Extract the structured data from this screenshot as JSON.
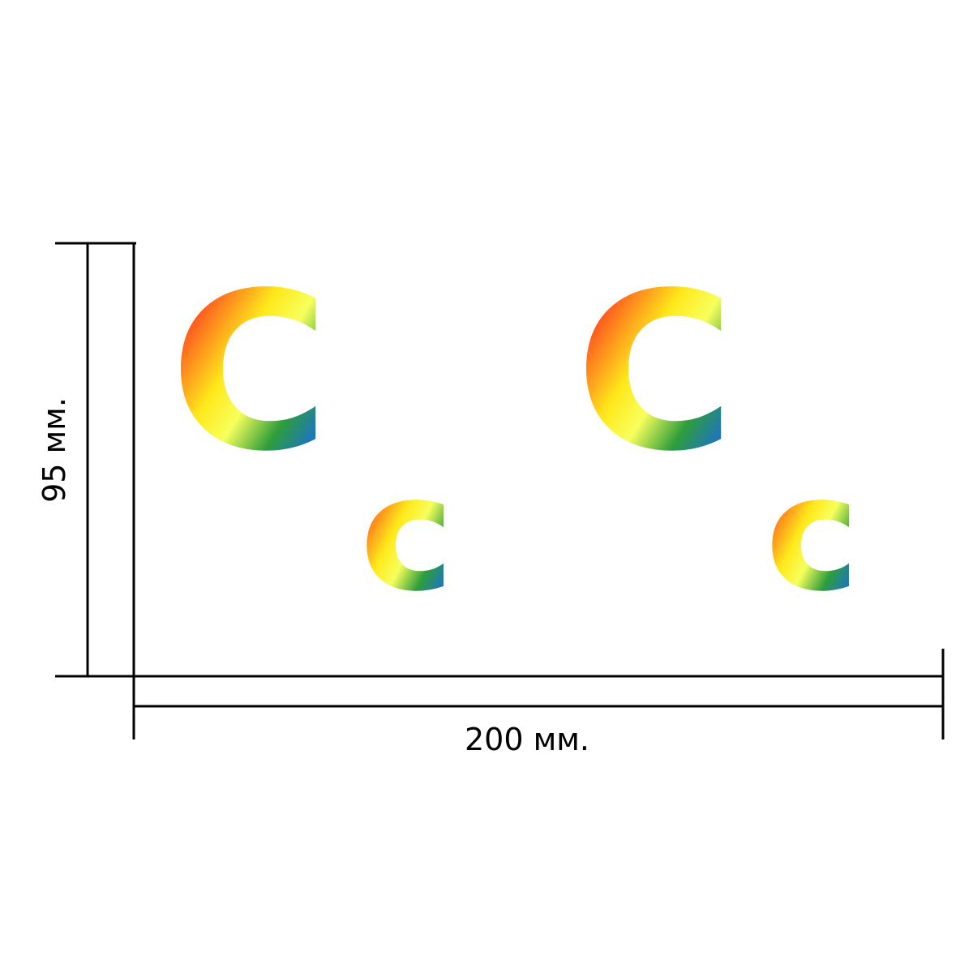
{
  "dimensions": {
    "height_label": "95 мм.",
    "width_label": "200 мм."
  },
  "letters": [
    {
      "glyph": "C"
    },
    {
      "glyph": "c"
    },
    {
      "glyph": "C"
    },
    {
      "glyph": "c"
    }
  ],
  "colors": {
    "line": "#000000",
    "gradient": [
      "#e8224f",
      "#ff5a1f",
      "#ffe81a",
      "#f7ff5c",
      "#2e9e3a",
      "#1a6be0",
      "#1020d0"
    ]
  }
}
